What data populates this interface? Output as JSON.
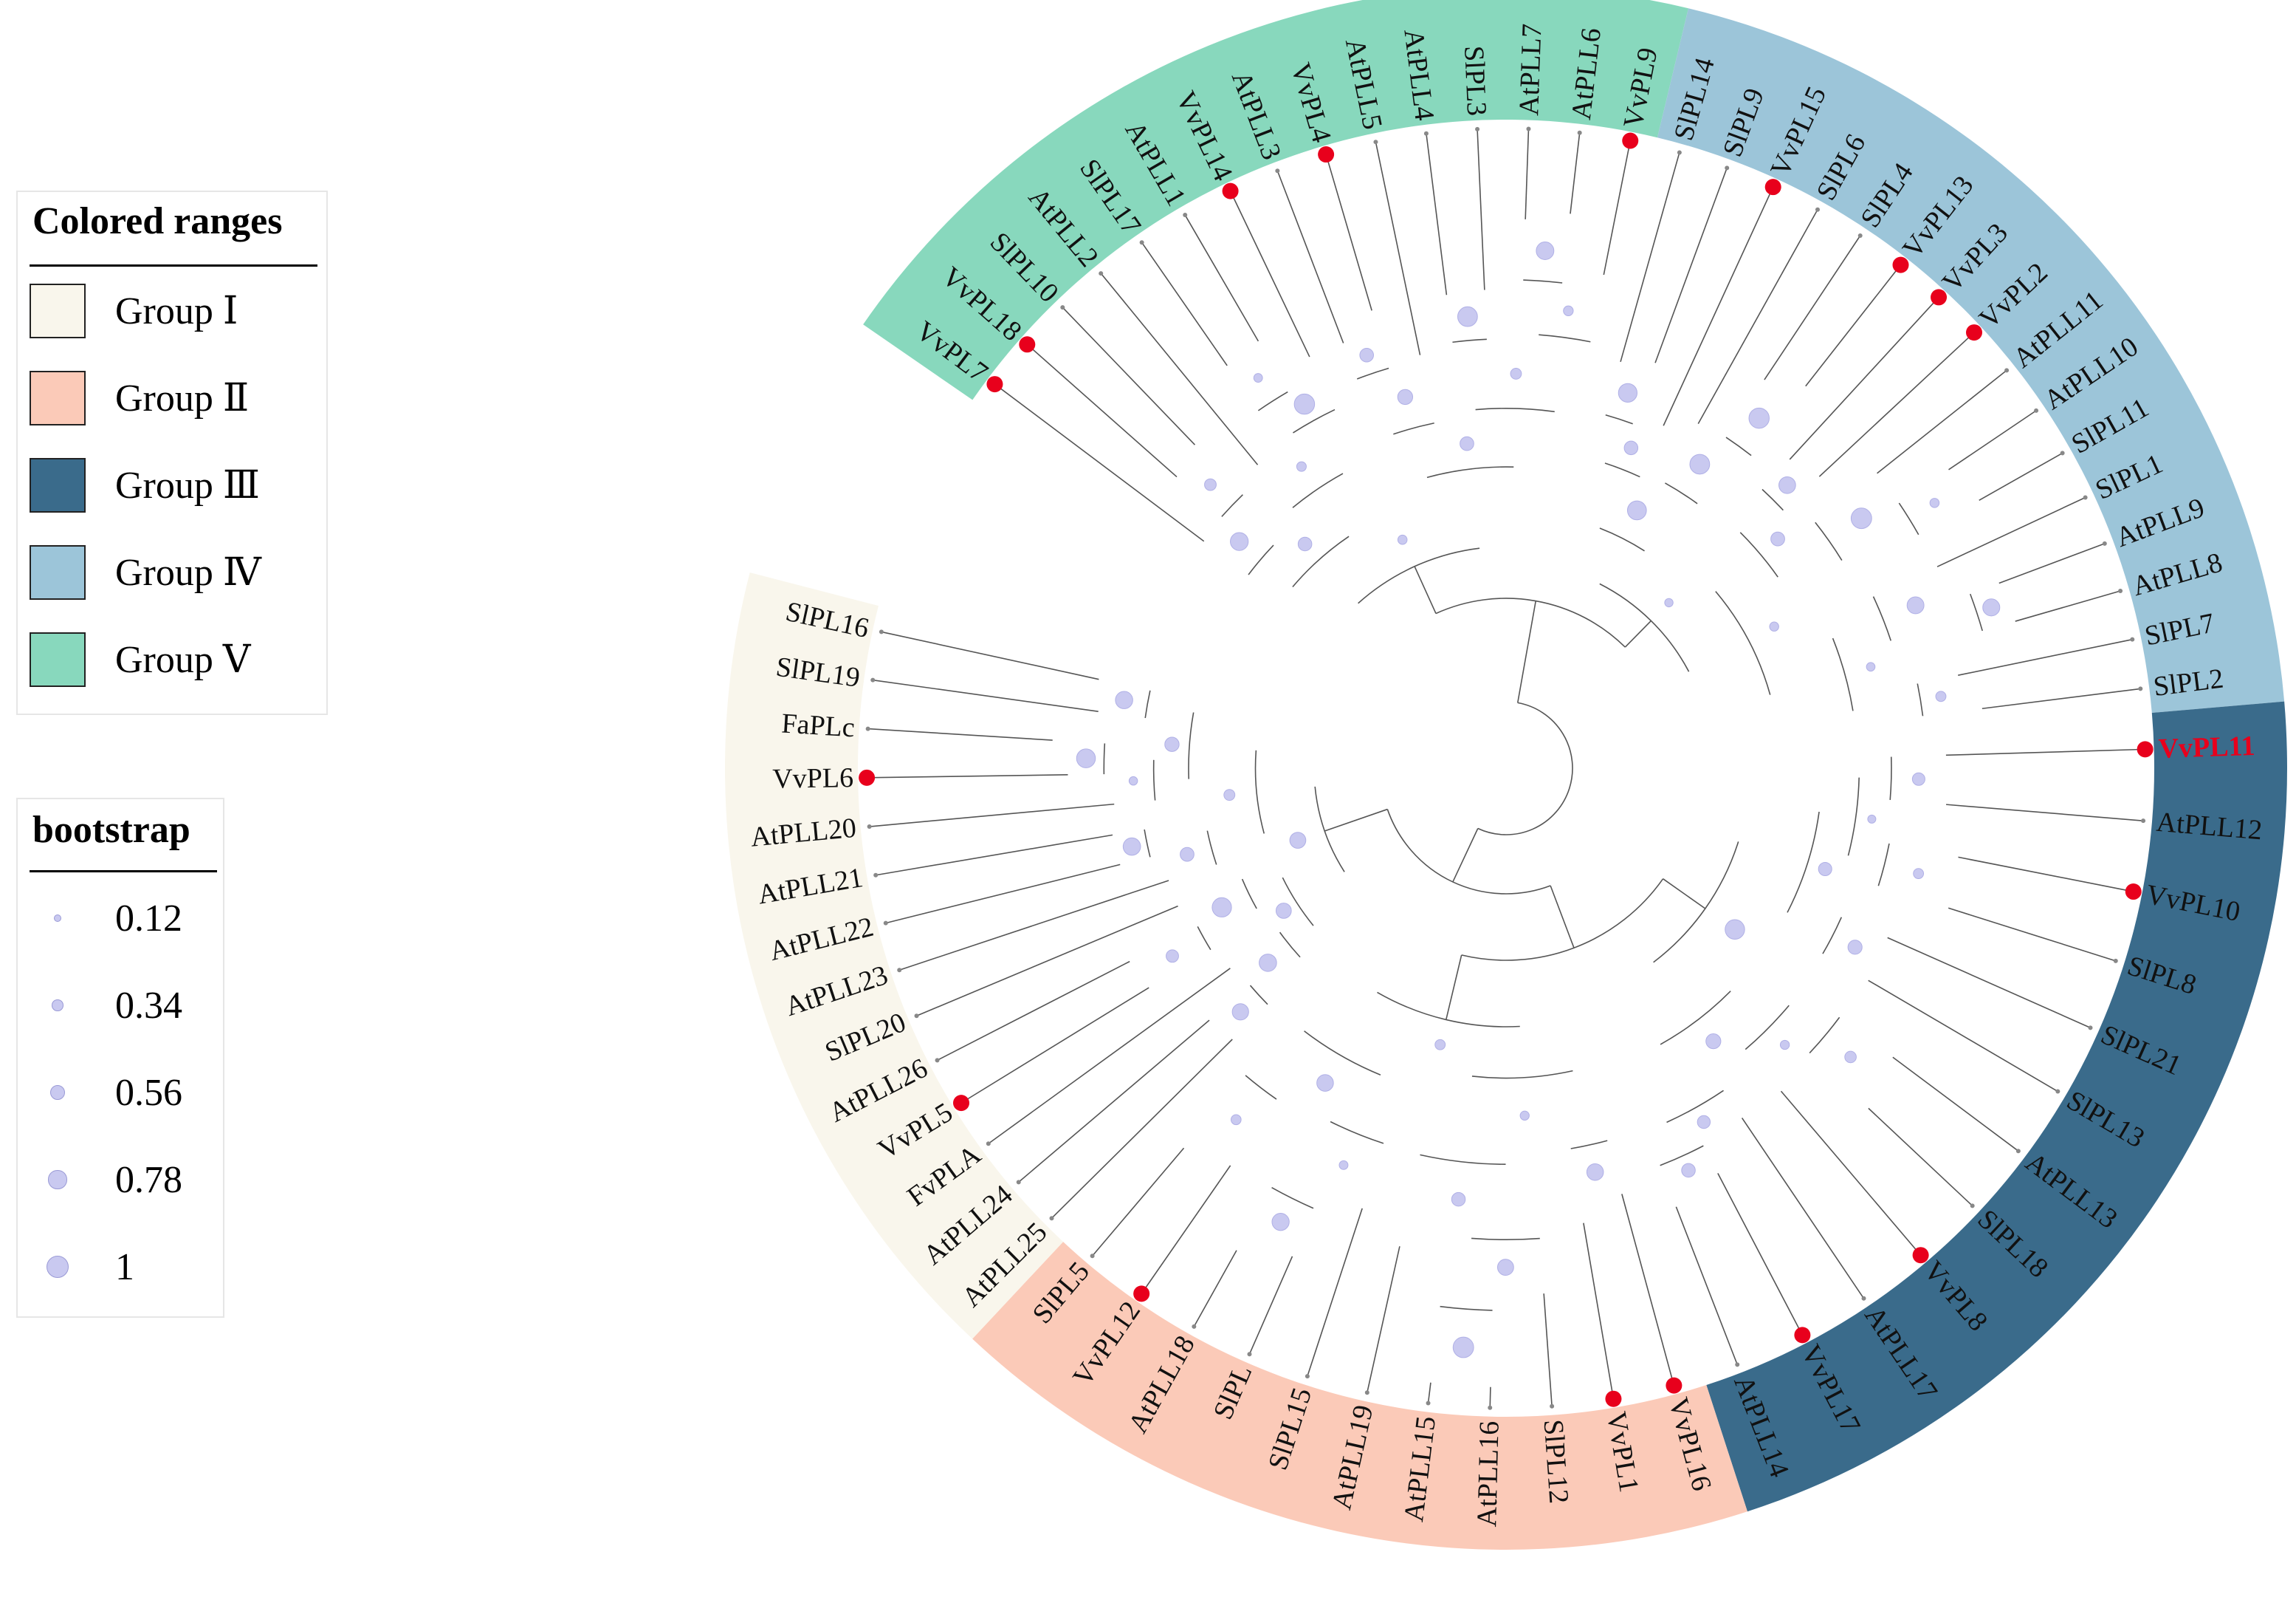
{
  "legend_ranges": {
    "title": "Colored ranges",
    "items": [
      {
        "label": "Group Ⅰ",
        "color": "#f9f6ec"
      },
      {
        "label": "Group Ⅱ",
        "color": "#fbcab8"
      },
      {
        "label": "Group Ⅲ",
        "color": "#3a6b8b"
      },
      {
        "label": "Group Ⅳ",
        "color": "#9cc5d9"
      },
      {
        "label": "Group Ⅴ",
        "color": "#88d8bd"
      }
    ]
  },
  "legend_bootstrap": {
    "title": "bootstrap",
    "items": [
      {
        "label": "0.12",
        "value": 0.12
      },
      {
        "label": "0.34",
        "value": 0.34
      },
      {
        "label": "0.56",
        "value": 0.56
      },
      {
        "label": "0.78",
        "value": 0.78
      },
      {
        "label": "1",
        "value": 1
      }
    ]
  },
  "tree": {
    "highlight_color": "#e8001c",
    "branch_color": "#555555",
    "bootstrap_color": "#c9c9f0",
    "groups": [
      {
        "name": "Group Ⅴ",
        "leaves": [
          "VvPL7",
          "VvPL18",
          "SlPL10",
          "AtPLL2",
          "SlPL17",
          "AtPLL1",
          "VvPL14",
          "AtPLL3",
          "VvPL4",
          "AtPLL5",
          "AtPLL4",
          "SlPL3",
          "AtPLL7",
          "AtPLL6",
          "VvPL9"
        ]
      },
      {
        "name": "Group Ⅳ",
        "leaves": [
          "SlPL14",
          "SlPL9",
          "VvPL15",
          "SlPL6",
          "SlPL4",
          "VvPL13",
          "VvPL3",
          "VvPL2",
          "AtPLL11",
          "AtPLL10",
          "SlPL11",
          "SlPL1",
          "AtPLL9",
          "AtPLL8",
          "SlPL7",
          "SlPL2"
        ]
      },
      {
        "name": "Group Ⅲ",
        "leaves": [
          "VvPL11",
          "AtPLL12",
          "VvPL10",
          "SlPL8",
          "SlPL21",
          "SlPL13",
          "AtPLL13",
          "SlPL18",
          "VvPL8",
          "AtPLL17",
          "VvPL17",
          "AtPLL14"
        ]
      },
      {
        "name": "Group Ⅱ",
        "leaves": [
          "VvPL16",
          "VvPL1",
          "SlPL12",
          "AtPLL16",
          "AtPLL15",
          "AtPLL19",
          "SlPL15",
          "SlPL",
          "AtPLL18",
          "VvPL12",
          "SlPL5"
        ]
      },
      {
        "name": "Group Ⅰ",
        "leaves": [
          "AtPLL25",
          "AtPLL24",
          "FvPLA",
          "VvPL5",
          "AtPLL26",
          "SlPL20",
          "AtPLL23",
          "AtPLL22",
          "AtPLL21",
          "AtPLL20",
          "VvPL6",
          "FaPLc",
          "SlPL19",
          "SlPL16"
        ]
      }
    ],
    "marked_leaves": [
      "VvPL7",
      "VvPL18",
      "VvPL14",
      "VvPL4",
      "VvPL9",
      "VvPL15",
      "VvPL13",
      "VvPL3",
      "VvPL2",
      "VvPL11",
      "VvPL10",
      "VvPL8",
      "VvPL17",
      "VvPL16",
      "VvPL1",
      "VvPL12",
      "VvPL5",
      "VvPL6"
    ],
    "highlighted_leaf": "VvPL11"
  }
}
